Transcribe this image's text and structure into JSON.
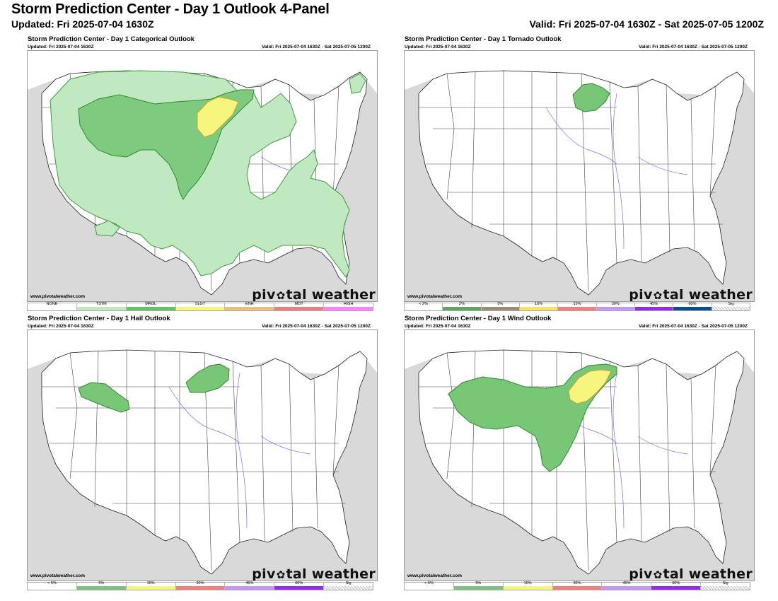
{
  "header": {
    "title": "Storm Prediction Center - Day 1 Outlook 4-Panel",
    "updated": "Updated: Fri 2025-07-04 1630Z",
    "valid": "Valid: Fri 2025-07-04 1630Z - Sat 2025-07-05 1200Z"
  },
  "panels": [
    {
      "title": "Storm Prediction Center - Day 1 Categorical Outlook",
      "updated": "Updated: Fri 2025-07-04 1630Z",
      "valid": "Valid: Fri 2025-07-04 1630Z - Sat 2025-07-05 1200Z",
      "credit": "www.pivotalweather.com",
      "legend": [
        {
          "label": "NONE",
          "color": "#ffffff"
        },
        {
          "label": "TSTM",
          "color": "#c1e9c1"
        },
        {
          "label": "MRGL",
          "color": "#66c266"
        },
        {
          "label": "SLGT",
          "color": "#f6f67f"
        },
        {
          "label": "ENH",
          "color": "#e6c27f"
        },
        {
          "label": "MDT",
          "color": "#e67f7f"
        },
        {
          "label": "HIGH",
          "color": "#ff80ff"
        }
      ],
      "areas": [
        "TSTM",
        "MRGL",
        "SLGT"
      ]
    },
    {
      "title": "Storm Prediction Center - Day 1 Tornado Outlook",
      "updated": "Updated: Fri 2025-07-04 1630Z",
      "valid": "Valid: Fri 2025-07-04 1630Z - Sat 2025-07-05 1200Z",
      "credit": "www.pivotalweather.com",
      "legend": [
        {
          "label": "< 2%",
          "color": "#ffffff"
        },
        {
          "label": "2%",
          "color": "#66a366"
        },
        {
          "label": "5%",
          "color": "#9d8b76"
        },
        {
          "label": "10%",
          "color": "#ffe066"
        },
        {
          "label": "15%",
          "color": "#f08080"
        },
        {
          "label": "30%",
          "color": "#c497f2"
        },
        {
          "label": "45%",
          "color": "#912cee"
        },
        {
          "label": "60%",
          "color": "#104e8b"
        },
        {
          "label": "Sig",
          "color": "hatch"
        }
      ],
      "areas": [
        "2%"
      ]
    },
    {
      "title": "Storm Prediction Center - Day 1 Hail Outlook",
      "updated": "Updated: Fri 2025-07-04 1630Z",
      "valid": "Valid: Fri 2025-07-04 1630Z - Sat 2025-07-05 1200Z",
      "credit": "www.pivotalweather.com",
      "legend": [
        {
          "label": "< 5%",
          "color": "#ffffff"
        },
        {
          "label": "5%",
          "color": "#7fbf7f"
        },
        {
          "label": "15%",
          "color": "#f6f67f"
        },
        {
          "label": "30%",
          "color": "#f08080"
        },
        {
          "label": "45%",
          "color": "#c497f2"
        },
        {
          "label": "60%",
          "color": "#912cee"
        },
        {
          "label": "Sig",
          "color": "hatch"
        }
      ],
      "areas": [
        "5%"
      ]
    },
    {
      "title": "Storm Prediction Center - Day 1 Wind Outlook",
      "updated": "Updated: Fri 2025-07-04 1630Z",
      "valid": "Valid: Fri 2025-07-04 1630Z - Sat 2025-07-05 1200Z",
      "credit": "www.pivotalweather.com",
      "legend": [
        {
          "label": "< 5%",
          "color": "#ffffff"
        },
        {
          "label": "5%",
          "color": "#7fbf7f"
        },
        {
          "label": "15%",
          "color": "#f6f67f"
        },
        {
          "label": "30%",
          "color": "#f08080"
        },
        {
          "label": "45%",
          "color": "#c497f2"
        },
        {
          "label": "60%",
          "color": "#912cee"
        },
        {
          "label": "Sig",
          "color": "hatch"
        }
      ],
      "areas": [
        "5%",
        "15%"
      ]
    }
  ],
  "brand": {
    "part1": "piv",
    "part2": "tal weather"
  }
}
